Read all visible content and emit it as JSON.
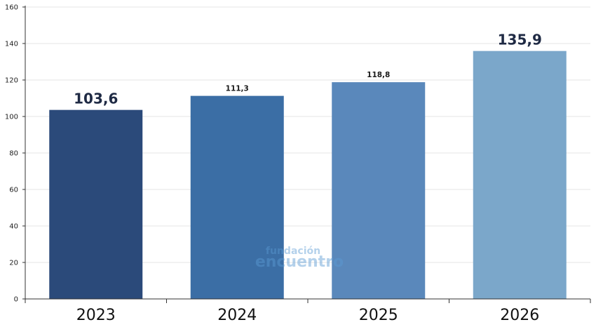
{
  "chart_data": {
    "type": "bar",
    "categories": [
      "2023",
      "2024",
      "2025",
      "2026"
    ],
    "values": [
      103.6,
      111.3,
      118.8,
      135.9
    ],
    "data_labels": [
      "103,6",
      "111,3",
      "118,8",
      "135,9"
    ],
    "data_label_emphasis": [
      "large",
      "small",
      "small",
      "large"
    ],
    "colors": [
      "#2b4a7a",
      "#3b6ea5",
      "#5a88bb",
      "#7ba7ca"
    ],
    "title": "",
    "xlabel": "",
    "ylabel": "",
    "ylim": [
      0,
      160
    ],
    "yticks": [
      0,
      20,
      40,
      60,
      80,
      100,
      120,
      140,
      160
    ],
    "grid": true,
    "legend": "none"
  },
  "watermark": {
    "line1": "fundación",
    "line2": "encuentro"
  }
}
